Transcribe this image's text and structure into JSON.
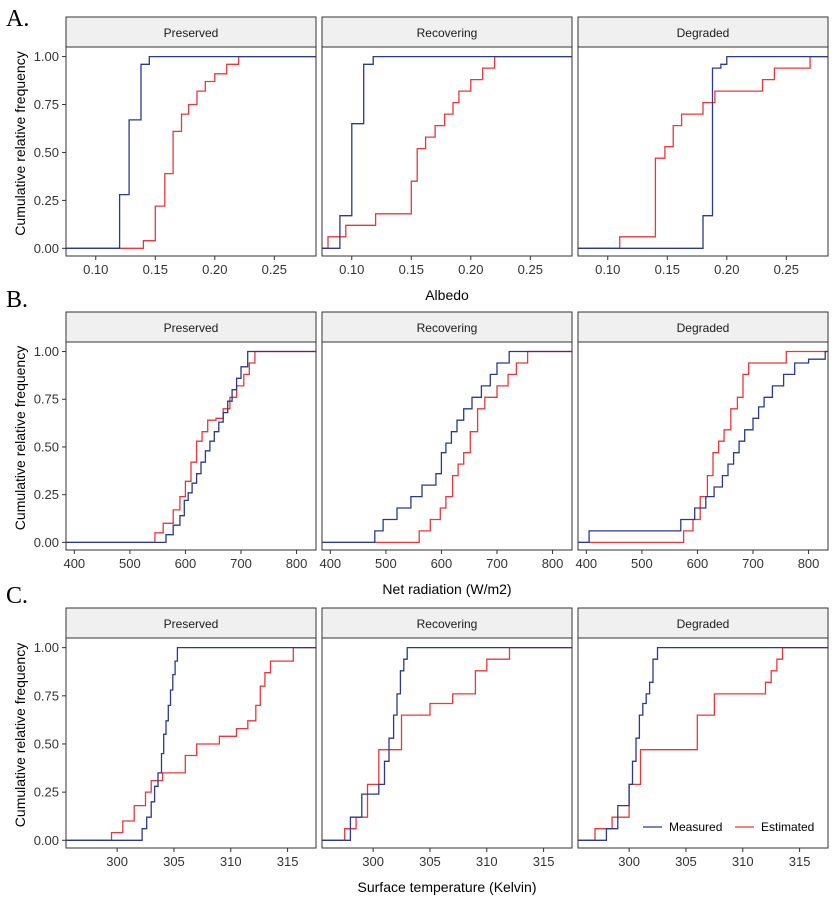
{
  "chart_data": {
    "type": "line",
    "chart_kind": "empirical cumulative distribution (step)",
    "y_axis": {
      "label": "Cumulative relative frequency",
      "ticks": [
        0,
        0.25,
        0.5,
        0.75,
        1
      ],
      "tick_labels": [
        "0.00",
        "0.25",
        "0.50",
        "0.75",
        "1.00"
      ],
      "range": [
        -0.04,
        1.05
      ]
    },
    "colors": {
      "Measured": "#2b3a8c",
      "Estimated": "#e8383d"
    },
    "legend": {
      "position": "bottom-right",
      "entries": [
        "Measured",
        "Estimated"
      ]
    },
    "facets": [
      "Preserved",
      "Recovering",
      "Degraded"
    ],
    "panels": [
      {
        "letter": "A.",
        "xlabel": "Albedo",
        "xlim": [
          0.075,
          0.285
        ],
        "xticks": [
          0.1,
          0.15,
          0.2,
          0.25
        ],
        "xtick_labels": [
          "0.10",
          "0.15",
          "0.20",
          "0.25"
        ],
        "facets": [
          {
            "name": "Preserved",
            "series": [
              {
                "name": "Measured",
                "x": [
                  0.075,
                  0.12,
                  0.128,
                  0.138,
                  0.145,
                  0.285
                ],
                "y": [
                  0,
                  0.28,
                  0.67,
                  0.96,
                  1.0,
                  1.0
                ]
              },
              {
                "name": "Estimated",
                "x": [
                  0.075,
                  0.14,
                  0.15,
                  0.158,
                  0.165,
                  0.172,
                  0.178,
                  0.185,
                  0.192,
                  0.2,
                  0.21,
                  0.22,
                  0.285
                ],
                "y": [
                  0,
                  0.04,
                  0.22,
                  0.39,
                  0.61,
                  0.7,
                  0.75,
                  0.82,
                  0.87,
                  0.91,
                  0.96,
                  1.0,
                  1.0
                ]
              }
            ]
          },
          {
            "name": "Recovering",
            "series": [
              {
                "name": "Measured",
                "x": [
                  0.075,
                  0.09,
                  0.1,
                  0.11,
                  0.118,
                  0.128,
                  0.285
                ],
                "y": [
                  0,
                  0.17,
                  0.65,
                  0.96,
                  1.0,
                  1.0,
                  1.0
                ]
              },
              {
                "name": "Estimated",
                "x": [
                  0.075,
                  0.08,
                  0.095,
                  0.12,
                  0.13,
                  0.15,
                  0.155,
                  0.162,
                  0.17,
                  0.178,
                  0.185,
                  0.19,
                  0.2,
                  0.21,
                  0.22,
                  0.285
                ],
                "y": [
                  0,
                  0.06,
                  0.12,
                  0.18,
                  0.18,
                  0.35,
                  0.52,
                  0.58,
                  0.64,
                  0.7,
                  0.76,
                  0.82,
                  0.88,
                  0.94,
                  1.0,
                  1.0
                ]
              }
            ]
          },
          {
            "name": "Degraded",
            "series": [
              {
                "name": "Measured",
                "x": [
                  0.075,
                  0.18,
                  0.188,
                  0.195,
                  0.2,
                  0.265,
                  0.285
                ],
                "y": [
                  0,
                  0.17,
                  0.94,
                  0.96,
                  1.0,
                  1.0,
                  1.0
                ]
              },
              {
                "name": "Estimated",
                "x": [
                  0.075,
                  0.11,
                  0.14,
                  0.148,
                  0.155,
                  0.162,
                  0.18,
                  0.19,
                  0.2,
                  0.23,
                  0.24,
                  0.27,
                  0.285
                ],
                "y": [
                  0,
                  0.06,
                  0.47,
                  0.53,
                  0.64,
                  0.7,
                  0.76,
                  0.82,
                  0.82,
                  0.88,
                  0.94,
                  1.0,
                  1.0
                ]
              }
            ]
          }
        ]
      },
      {
        "letter": "B.",
        "xlabel": "Net radiation  (W/m2)",
        "xlim": [
          385,
          835
        ],
        "xticks": [
          400,
          500,
          600,
          700,
          800
        ],
        "xtick_labels": [
          "400",
          "500",
          "600",
          "700",
          "800"
        ],
        "facets": [
          {
            "name": "Preserved",
            "series": [
              {
                "name": "Measured",
                "x": [
                  385,
                  565,
                  578,
                  590,
                  598,
                  605,
                  612,
                  620,
                  628,
                  636,
                  644,
                  652,
                  660,
                  668,
                  676,
                  684,
                  692,
                  700,
                  712,
                  835
                ],
                "y": [
                  0,
                  0.04,
                  0.09,
                  0.14,
                  0.22,
                  0.26,
                  0.31,
                  0.36,
                  0.42,
                  0.48,
                  0.53,
                  0.58,
                  0.63,
                  0.68,
                  0.74,
                  0.8,
                  0.86,
                  0.92,
                  1.0,
                  1.0
                ]
              },
              {
                "name": "Estimated",
                "x": [
                  385,
                  545,
                  560,
                  578,
                  590,
                  600,
                  610,
                  620,
                  630,
                  640,
                  655,
                  668,
                  680,
                  692,
                  705,
                  715,
                  725,
                  835
                ],
                "y": [
                  0,
                  0.05,
                  0.1,
                  0.17,
                  0.24,
                  0.32,
                  0.42,
                  0.53,
                  0.58,
                  0.64,
                  0.65,
                  0.7,
                  0.76,
                  0.82,
                  0.88,
                  0.94,
                  1.0,
                  1.0
                ]
              }
            ]
          },
          {
            "name": "Recovering",
            "series": [
              {
                "name": "Measured",
                "x": [
                  385,
                  480,
                  495,
                  520,
                  545,
                  565,
                  590,
                  600,
                  608,
                  618,
                  628,
                  640,
                  655,
                  672,
                  688,
                  700,
                  722,
                  835
                ],
                "y": [
                  0,
                  0.06,
                  0.12,
                  0.18,
                  0.24,
                  0.3,
                  0.36,
                  0.47,
                  0.52,
                  0.58,
                  0.64,
                  0.7,
                  0.76,
                  0.82,
                  0.88,
                  0.94,
                  1.0,
                  1.0
                ]
              },
              {
                "name": "Estimated",
                "x": [
                  385,
                  560,
                  580,
                  598,
                  608,
                  620,
                  630,
                  640,
                  652,
                  665,
                  678,
                  700,
                  720,
                  735,
                  755,
                  835
                ],
                "y": [
                  0,
                  0.06,
                  0.12,
                  0.18,
                  0.24,
                  0.35,
                  0.41,
                  0.47,
                  0.58,
                  0.7,
                  0.76,
                  0.82,
                  0.88,
                  0.94,
                  1.0,
                  1.0
                ]
              }
            ]
          },
          {
            "name": "Degraded",
            "series": [
              {
                "name": "Measured",
                "x": [
                  385,
                  405,
                  570,
                  595,
                  615,
                  630,
                  645,
                  655,
                  665,
                  675,
                  685,
                  700,
                  710,
                  720,
                  735,
                  755,
                  775,
                  800,
                  830,
                  835
                ],
                "y": [
                  0,
                  0.06,
                  0.12,
                  0.18,
                  0.24,
                  0.29,
                  0.35,
                  0.41,
                  0.47,
                  0.53,
                  0.59,
                  0.65,
                  0.71,
                  0.76,
                  0.82,
                  0.88,
                  0.94,
                  0.96,
                  1.0,
                  1.0
                ]
              },
              {
                "name": "Estimated",
                "x": [
                  385,
                  575,
                  592,
                  605,
                  618,
                  628,
                  638,
                  648,
                  660,
                  672,
                  682,
                  692,
                  700,
                  760,
                  835
                ],
                "y": [
                  0,
                  0.06,
                  0.12,
                  0.24,
                  0.35,
                  0.47,
                  0.53,
                  0.59,
                  0.7,
                  0.76,
                  0.88,
                  0.94,
                  0.94,
                  1.0,
                  1.0
                ]
              }
            ]
          }
        ]
      },
      {
        "letter": "C.",
        "xlabel": "Surface temperature  (Kelvin)",
        "xlim": [
          295.5,
          317.5
        ],
        "xticks": [
          300,
          305,
          310,
          315
        ],
        "xtick_labels": [
          "300",
          "305",
          "310",
          "315"
        ],
        "facets": [
          {
            "name": "Preserved",
            "series": [
              {
                "name": "Measured",
                "x": [
                  295.5,
                  302.2,
                  302.6,
                  303.0,
                  303.3,
                  303.6,
                  303.9,
                  304.1,
                  304.3,
                  304.5,
                  304.7,
                  304.9,
                  305.1,
                  305.3,
                  317.5
                ],
                "y": [
                  0,
                  0.06,
                  0.12,
                  0.2,
                  0.28,
                  0.35,
                  0.45,
                  0.55,
                  0.62,
                  0.7,
                  0.78,
                  0.86,
                  0.93,
                  1.0,
                  1.0
                ]
              },
              {
                "name": "Estimated",
                "x": [
                  295.5,
                  299.5,
                  300.5,
                  301.5,
                  302.5,
                  303.0,
                  304.0,
                  306.0,
                  307.0,
                  309.0,
                  310.5,
                  311.5,
                  312.2,
                  312.6,
                  313.0,
                  313.5,
                  315.5,
                  317.5
                ],
                "y": [
                  0,
                  0.04,
                  0.1,
                  0.18,
                  0.25,
                  0.31,
                  0.35,
                  0.44,
                  0.5,
                  0.54,
                  0.58,
                  0.62,
                  0.7,
                  0.8,
                  0.87,
                  0.93,
                  1.0,
                  1.0
                ]
              }
            ]
          },
          {
            "name": "Recovering",
            "series": [
              {
                "name": "Measured",
                "x": [
                  295.5,
                  298.0,
                  299.0,
                  300.5,
                  301.0,
                  301.4,
                  301.8,
                  302.1,
                  302.4,
                  302.7,
                  303.0,
                  317.5
                ],
                "y": [
                  0,
                  0.12,
                  0.24,
                  0.29,
                  0.41,
                  0.53,
                  0.65,
                  0.76,
                  0.88,
                  0.94,
                  1.0,
                  1.0
                ]
              },
              {
                "name": "Estimated",
                "x": [
                  295.5,
                  297.5,
                  298.5,
                  299.5,
                  300.5,
                  301.5,
                  302.5,
                  305.0,
                  307.0,
                  309.0,
                  310.0,
                  312.0,
                  317.5
                ],
                "y": [
                  0,
                  0.06,
                  0.12,
                  0.29,
                  0.47,
                  0.47,
                  0.65,
                  0.71,
                  0.76,
                  0.88,
                  0.94,
                  1.0,
                  1.0
                ]
              }
            ]
          },
          {
            "name": "Degraded",
            "series": [
              {
                "name": "Measured",
                "x": [
                  295.5,
                  298.0,
                  299.0,
                  300.0,
                  300.3,
                  300.6,
                  300.9,
                  301.2,
                  301.5,
                  301.8,
                  302.1,
                  302.5,
                  317.5
                ],
                "y": [
                  0,
                  0.06,
                  0.18,
                  0.29,
                  0.41,
                  0.53,
                  0.65,
                  0.71,
                  0.76,
                  0.82,
                  0.94,
                  1.0,
                  1.0
                ]
              },
              {
                "name": "Estimated",
                "x": [
                  295.5,
                  297.0,
                  298.5,
                  300.0,
                  301.0,
                  305.0,
                  306.0,
                  307.5,
                  311.5,
                  312.0,
                  312.5,
                  313.0,
                  313.5,
                  317.5
                ],
                "y": [
                  0,
                  0.06,
                  0.12,
                  0.29,
                  0.47,
                  0.47,
                  0.65,
                  0.76,
                  0.76,
                  0.82,
                  0.88,
                  0.94,
                  1.0,
                  1.0
                ]
              }
            ]
          }
        ]
      }
    ]
  }
}
